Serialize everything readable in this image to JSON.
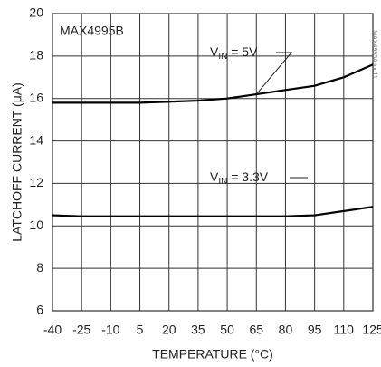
{
  "chart_data": {
    "type": "line",
    "title": "MAX4995B",
    "chart_id": "MAX4995A toc11",
    "xlabel": "TEMPERATURE (°C)",
    "ylabel": "LATCHOFF CURRENT (μA)",
    "x": [
      -40,
      -25,
      -10,
      5,
      20,
      35,
      50,
      65,
      80,
      95,
      110,
      125
    ],
    "xlim": [
      -40,
      125
    ],
    "xticks": [
      -40,
      -25,
      -10,
      5,
      20,
      35,
      50,
      65,
      80,
      95,
      110,
      125
    ],
    "ylim": [
      6,
      20
    ],
    "yticks": [
      6,
      8,
      10,
      12,
      14,
      16,
      18,
      20
    ],
    "grid": true,
    "series": [
      {
        "label_parts": [
          "V",
          "IN",
          " = 5V"
        ],
        "color": "#000000",
        "values": [
          15.8,
          15.8,
          15.8,
          15.8,
          15.85,
          15.9,
          16.0,
          16.2,
          16.4,
          16.6,
          17.0,
          17.6
        ]
      },
      {
        "label_parts": [
          "V",
          "IN",
          " = 3.3V"
        ],
        "color": "#000000",
        "values": [
          10.5,
          10.45,
          10.45,
          10.45,
          10.45,
          10.45,
          10.45,
          10.45,
          10.45,
          10.5,
          10.7,
          10.9
        ]
      }
    ]
  }
}
